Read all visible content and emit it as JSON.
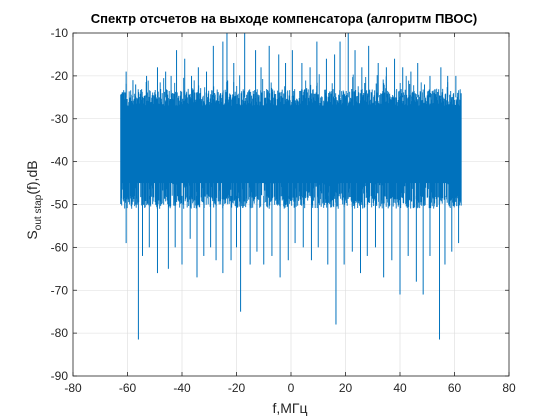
{
  "chart_data": {
    "type": "line",
    "title": "Спектр отсчетов на выходе компенсатора (алгоритм ПВОС)",
    "xlabel": "f,МГц",
    "ylabel": {
      "main": "S",
      "subscript": "out stap",
      "suffix": "(f),dB"
    },
    "xlim": [
      -80,
      80
    ],
    "ylim": [
      -90,
      -10
    ],
    "x_ticks": [
      -80,
      -60,
      -40,
      -20,
      0,
      20,
      40,
      60,
      80
    ],
    "y_ticks": [
      -90,
      -80,
      -70,
      -60,
      -50,
      -40,
      -30,
      -20,
      -10
    ],
    "x_tick_labels": [
      "-80",
      "-60",
      "-40",
      "-20",
      "0",
      "20",
      "40",
      "60",
      "80"
    ],
    "y_tick_labels": [
      "-90",
      "-80",
      "-70",
      "-60",
      "-50",
      "-40",
      "-30",
      "-20",
      "-10"
    ],
    "grid": true,
    "legend": "none",
    "line_color": "#0072BD",
    "series": [
      {
        "x_range": [
          -62.5,
          62.5
        ],
        "band_upper_dB": -25,
        "band_lower_dB": -48,
        "typical_floor_dB": -55,
        "peaks": [
          {
            "x": -60.5,
            "y": -19
          },
          {
            "x": -58,
            "y": -21
          },
          {
            "x": -57,
            "y": -22
          },
          {
            "x": -53,
            "y": -20
          },
          {
            "x": -49,
            "y": -18
          },
          {
            "x": -46,
            "y": -19
          },
          {
            "x": -44,
            "y": -20
          },
          {
            "x": -42,
            "y": -14
          },
          {
            "x": -39,
            "y": -16
          },
          {
            "x": -36.5,
            "y": -20
          },
          {
            "x": -34,
            "y": -18
          },
          {
            "x": -31,
            "y": -19
          },
          {
            "x": -28.5,
            "y": -13
          },
          {
            "x": -25,
            "y": -12
          },
          {
            "x": -23.5,
            "y": -10
          },
          {
            "x": -21,
            "y": -17
          },
          {
            "x": -17,
            "y": -10
          },
          {
            "x": -13,
            "y": -14
          },
          {
            "x": -11,
            "y": -18
          },
          {
            "x": -8,
            "y": -13
          },
          {
            "x": -4.5,
            "y": -15
          },
          {
            "x": -2,
            "y": -17
          },
          {
            "x": 0.5,
            "y": -14
          },
          {
            "x": 4,
            "y": -17
          },
          {
            "x": 7,
            "y": -18
          },
          {
            "x": 9.5,
            "y": -12
          },
          {
            "x": 13,
            "y": -16
          },
          {
            "x": 16,
            "y": -15
          },
          {
            "x": 18,
            "y": -12
          },
          {
            "x": 21,
            "y": -10
          },
          {
            "x": 23.5,
            "y": -14
          },
          {
            "x": 26,
            "y": -18
          },
          {
            "x": 28.5,
            "y": -13
          },
          {
            "x": 32,
            "y": -17
          },
          {
            "x": 35,
            "y": -18
          },
          {
            "x": 38,
            "y": -16
          },
          {
            "x": 41,
            "y": -18
          },
          {
            "x": 44,
            "y": -19
          },
          {
            "x": 46.5,
            "y": -17
          },
          {
            "x": 49,
            "y": -22
          },
          {
            "x": 51,
            "y": -20
          },
          {
            "x": 55,
            "y": -18
          },
          {
            "x": 57.5,
            "y": -20
          },
          {
            "x": 60.5,
            "y": -20
          }
        ],
        "dips": [
          {
            "x": -60.5,
            "y": -59
          },
          {
            "x": -56,
            "y": -81.5
          },
          {
            "x": -54.5,
            "y": -62
          },
          {
            "x": -52,
            "y": -60
          },
          {
            "x": -49,
            "y": -66
          },
          {
            "x": -45,
            "y": -65
          },
          {
            "x": -42.5,
            "y": -60
          },
          {
            "x": -40,
            "y": -64
          },
          {
            "x": -37,
            "y": -58
          },
          {
            "x": -34.5,
            "y": -67
          },
          {
            "x": -32,
            "y": -62
          },
          {
            "x": -29.5,
            "y": -60
          },
          {
            "x": -27.5,
            "y": -63
          },
          {
            "x": -25,
            "y": -66
          },
          {
            "x": -22,
            "y": -63
          },
          {
            "x": -20,
            "y": -60
          },
          {
            "x": -18.5,
            "y": -75
          },
          {
            "x": -15,
            "y": -64
          },
          {
            "x": -12.5,
            "y": -61
          },
          {
            "x": -10,
            "y": -64
          },
          {
            "x": -7,
            "y": -62
          },
          {
            "x": -4,
            "y": -67
          },
          {
            "x": -1,
            "y": -63
          },
          {
            "x": 1.5,
            "y": -59
          },
          {
            "x": 4.5,
            "y": -60
          },
          {
            "x": 7.5,
            "y": -63
          },
          {
            "x": 10,
            "y": -60
          },
          {
            "x": 13.5,
            "y": -64
          },
          {
            "x": 16.5,
            "y": -78
          },
          {
            "x": 19.5,
            "y": -64
          },
          {
            "x": 22.5,
            "y": -61
          },
          {
            "x": 25.5,
            "y": -66
          },
          {
            "x": 28,
            "y": -62
          },
          {
            "x": 31,
            "y": -60
          },
          {
            "x": 34,
            "y": -67
          },
          {
            "x": 37,
            "y": -63
          },
          {
            "x": 40,
            "y": -71
          },
          {
            "x": 43,
            "y": -62
          },
          {
            "x": 46,
            "y": -68
          },
          {
            "x": 48.5,
            "y": -71
          },
          {
            "x": 51,
            "y": -62
          },
          {
            "x": 54.5,
            "y": -81.5
          },
          {
            "x": 56.5,
            "y": -64
          },
          {
            "x": 59,
            "y": -61
          },
          {
            "x": 61.5,
            "y": -59
          }
        ]
      }
    ]
  }
}
